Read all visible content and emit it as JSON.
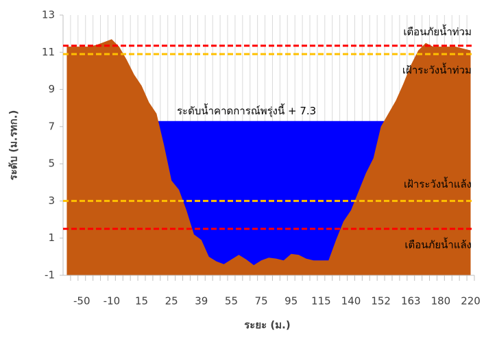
{
  "chart_data": {
    "type": "area",
    "xlabel": "ระยะ (ม.)",
    "ylabel": "ระดับ (ม.รทก.)",
    "categories": [
      null,
      null,
      "-50",
      null,
      null,
      null,
      "-10",
      null,
      null,
      null,
      "15",
      null,
      null,
      null,
      "25",
      null,
      null,
      null,
      "39",
      null,
      null,
      null,
      "55",
      null,
      null,
      null,
      "75",
      null,
      null,
      null,
      "95",
      null,
      null,
      null,
      "115",
      null,
      null,
      null,
      "140",
      null,
      null,
      null,
      "152",
      null,
      null,
      null,
      "163",
      null,
      null,
      null,
      "180",
      null,
      null,
      null,
      "220"
    ],
    "series": [
      {
        "name": "water",
        "color": "#0000ff",
        "values": [
          null,
          null,
          null,
          null,
          null,
          null,
          null,
          null,
          null,
          null,
          null,
          null,
          7.3,
          7.3,
          7.3,
          7.3,
          7.3,
          7.3,
          7.3,
          7.3,
          7.3,
          7.3,
          7.3,
          7.3,
          7.3,
          7.3,
          7.3,
          7.3,
          7.3,
          7.3,
          7.3,
          7.3,
          7.3,
          7.3,
          7.3,
          7.3,
          7.3,
          7.3,
          7.3,
          7.3,
          7.3,
          7.3,
          7.3,
          7.3,
          null,
          null,
          null,
          null,
          null,
          null,
          null,
          null,
          null,
          null,
          null
        ]
      },
      {
        "name": "terrain",
        "color": "#c55a11",
        "values": [
          11.3,
          11.3,
          11.3,
          11.3,
          11.4,
          11.55,
          11.7,
          11.3,
          10.6,
          9.8,
          9.2,
          8.3,
          7.7,
          6.0,
          4.1,
          3.6,
          2.5,
          1.2,
          0.9,
          0.0,
          -0.25,
          -0.4,
          -0.15,
          0.1,
          -0.15,
          -0.45,
          -0.2,
          -0.05,
          -0.1,
          -0.2,
          0.15,
          0.1,
          -0.1,
          -0.2,
          -0.2,
          -0.2,
          0.9,
          1.9,
          2.5,
          3.5,
          4.5,
          5.3,
          7.0,
          7.7,
          8.4,
          9.3,
          10.3,
          11.1,
          11.5,
          11.3,
          11.3,
          11.3,
          11.3,
          11.2,
          11.1
        ]
      }
    ],
    "lines": [
      {
        "label": "เตือนภัยน้ำท่วม",
        "value": 11.35,
        "color": "#ff0000"
      },
      {
        "label": "เฝ้าระวังน้ำท่วม",
        "value": 10.9,
        "color": "#ffc000"
      },
      {
        "label": "เฝ้าระวังน้ำแล้ง",
        "value": 3.0,
        "color": "#ffc000"
      },
      {
        "label": "เตือนภัยน้ำแล้ง",
        "value": 1.5,
        "color": "#ff0000"
      }
    ],
    "annotation": "ระดับน้ำคาดการณ์พรุ่งนี้ + 7.3",
    "ylim": [
      -1,
      13
    ],
    "yticks": [
      -1,
      1,
      3,
      5,
      7,
      9,
      11,
      13
    ],
    "grid": true
  }
}
